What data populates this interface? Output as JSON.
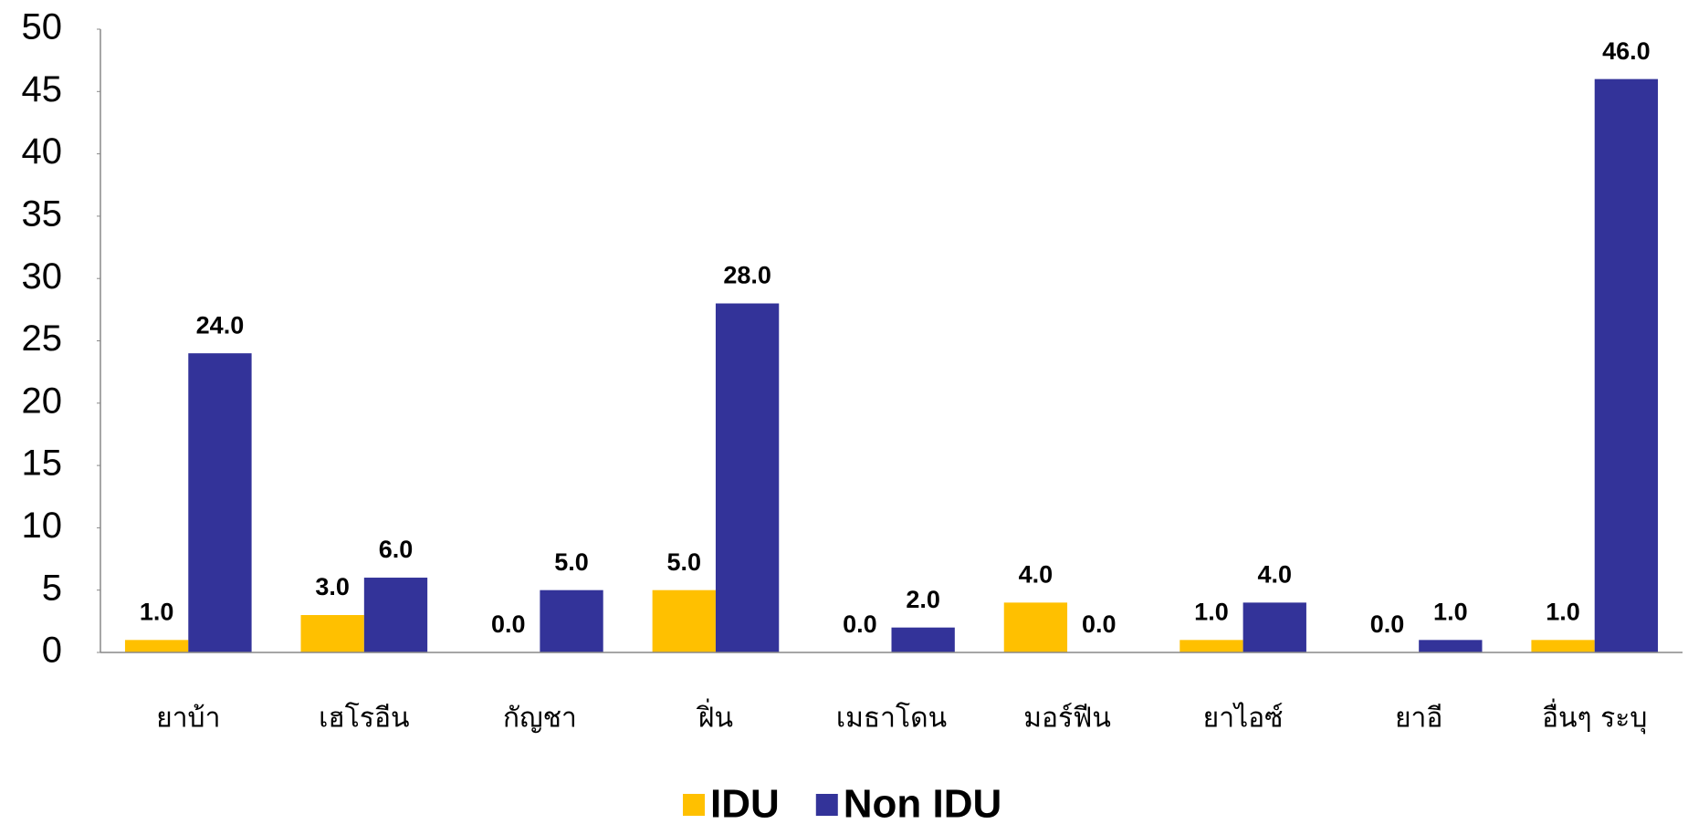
{
  "chart_data": {
    "type": "bar",
    "categories": [
      "ยาบ้า",
      "เฮโรอีน",
      "กัญชา",
      "ฝิ่น",
      "เมธาโดน",
      "มอร์ฟีน",
      "ยาไอซ์",
      "ยาอี",
      "อื่นๆ ระบุ"
    ],
    "series": [
      {
        "name": "IDU",
        "color": "#ffc000",
        "values": [
          1,
          3,
          0,
          5,
          0,
          4,
          1,
          0,
          1
        ],
        "value_labels": [
          "1.0",
          "3.0",
          "0.0",
          "5.0",
          "0.0",
          "4.0",
          "1.0",
          "0.0",
          "1.0"
        ]
      },
      {
        "name": "Non IDU",
        "color": "#333399",
        "values": [
          24,
          6,
          5,
          28,
          2,
          0,
          4,
          1,
          46
        ],
        "value_labels": [
          "24.0",
          "6.0",
          "5.0",
          "28.0",
          "2.0",
          "0.0",
          "4.0",
          "1.0",
          "46.0"
        ]
      }
    ],
    "ylim": [
      0,
      50
    ],
    "yticks": [
      0,
      5,
      10,
      15,
      20,
      25,
      30,
      35,
      40,
      45,
      50
    ],
    "legend": "bottom"
  }
}
